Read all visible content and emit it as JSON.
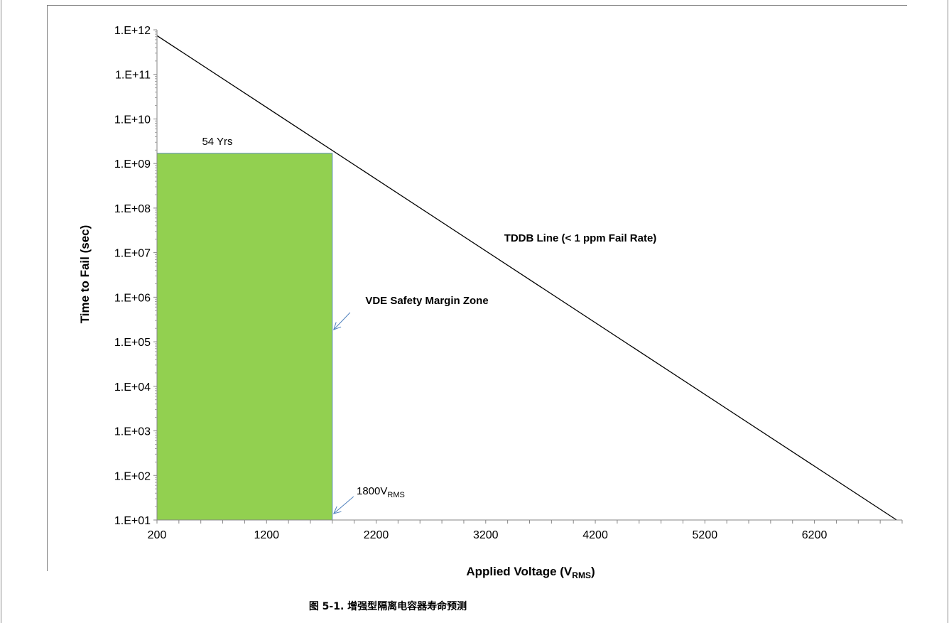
{
  "chart_data": {
    "type": "line",
    "title": "",
    "xlabel": "Applied Voltage (V",
    "xlabel_sub": "RMS",
    "xlabel_end": ")",
    "ylabel": "Time to Fail (sec)",
    "xlim": [
      200,
      7000
    ],
    "ylim_log10": [
      1,
      12
    ],
    "x_ticks": [
      "200",
      "1200",
      "2200",
      "3200",
      "4200",
      "5200",
      "6200"
    ],
    "x_tick_values": [
      200,
      1200,
      2200,
      3200,
      4200,
      5200,
      6200
    ],
    "x_minor_step": 200,
    "y_ticks": [
      "1.E+01",
      "1.E+02",
      "1.E+03",
      "1.E+04",
      "1.E+05",
      "1.E+06",
      "1.E+07",
      "1.E+08",
      "1.E+09",
      "1.E+10",
      "1.E+11",
      "1.E+12"
    ],
    "y_tick_exponents": [
      1,
      2,
      3,
      4,
      5,
      6,
      7,
      8,
      9,
      10,
      11,
      12
    ],
    "y_scale": "log",
    "grid": false,
    "series": [
      {
        "name": "TDDB Line (< 1 ppm Fail Rate)",
        "x": [
          200,
          6950
        ],
        "log10_y": [
          11.87,
          1.0
        ],
        "color": "#000000"
      }
    ],
    "zone": {
      "label": "54 Yrs",
      "x0": 200,
      "x1": 1800,
      "log10_y_top": 9.23,
      "fill": "#92D050",
      "stroke": "#5B8DB8"
    },
    "annotations": {
      "series_label": "TDDB Line (< 1 ppm Fail Rate)",
      "zone_label": "VDE Safety Margin Zone",
      "voltage_main": "1800V",
      "voltage_sub": "RMS",
      "voltage_color": "#31859C",
      "arrow_color": "#4F81BD"
    },
    "caption": "图 5-1. 增强型隔离电容器寿命预测"
  }
}
